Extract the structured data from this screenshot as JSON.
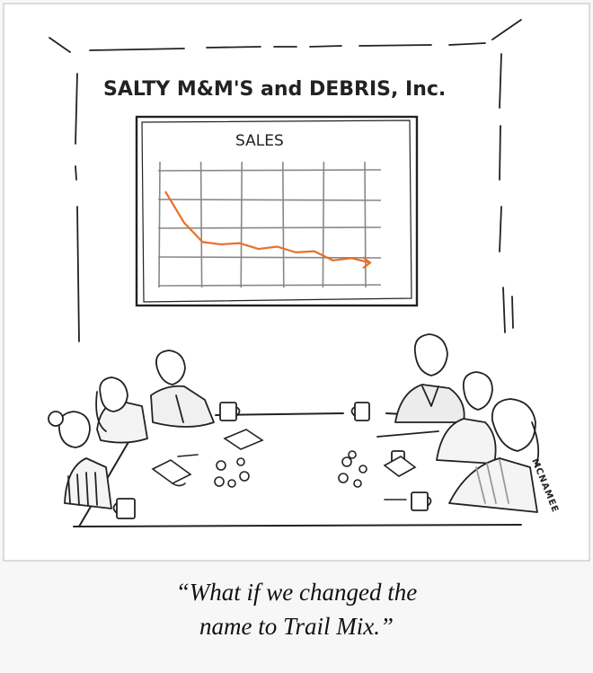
{
  "cartoon": {
    "company_sign": "SALTY M&M'S and DEBRIS, Inc.",
    "chart_title": "SALES",
    "signature": "MCNAMEE",
    "caption_line1": "“What if we changed the",
    "caption_line2": "name to Trail Mix.”",
    "line_color": "#e8702a"
  },
  "chart_data": {
    "type": "line",
    "title": "SALES",
    "xlabel": "",
    "ylabel": "",
    "series": [
      {
        "values": [
          0.82,
          0.55,
          0.38,
          0.36,
          0.37,
          0.32,
          0.34,
          0.29,
          0.3,
          0.22,
          0.24,
          0.2
        ]
      }
    ],
    "ylim": [
      0,
      1
    ],
    "grid": true,
    "trend": "decreasing"
  }
}
